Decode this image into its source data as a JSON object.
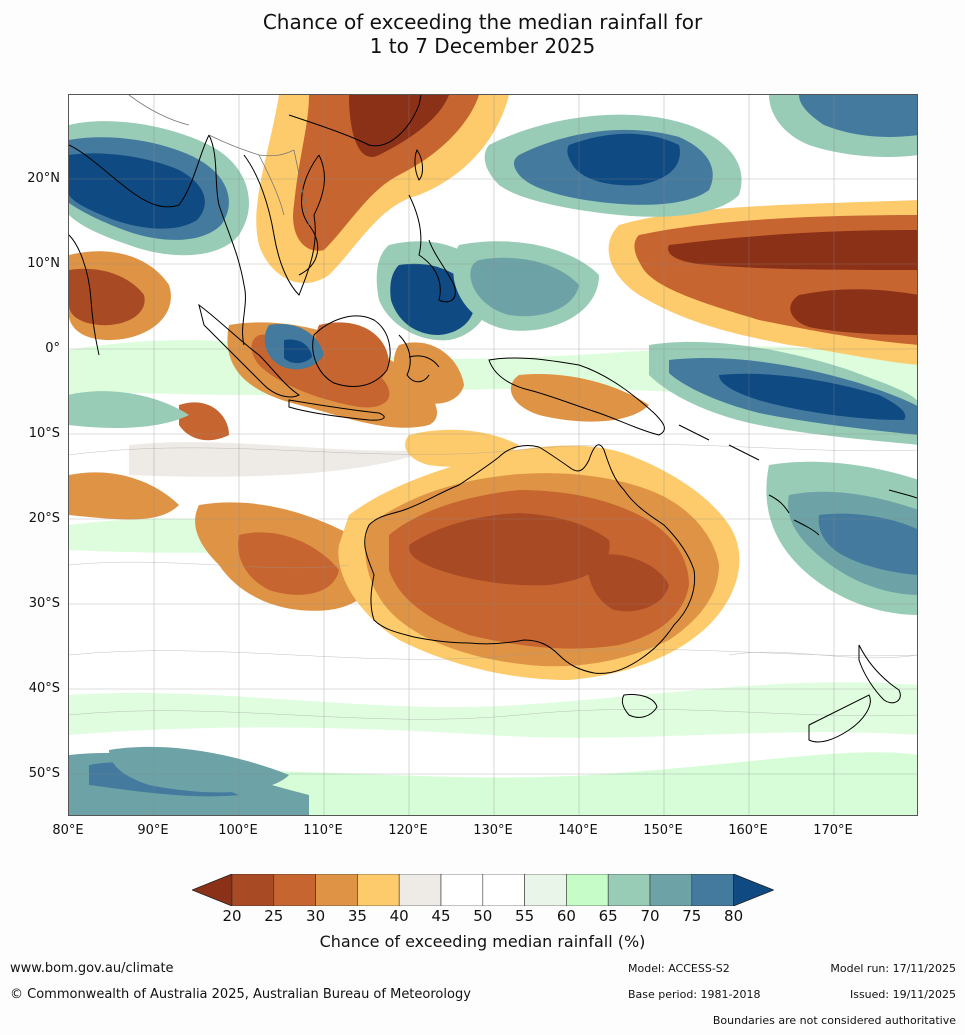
{
  "title": {
    "line1": "Chance of exceeding the median rainfall for",
    "line2": "1 to 7 December 2025"
  },
  "map": {
    "lat_labels": [
      "20°N",
      "10°N",
      "0°",
      "10°S",
      "20°S",
      "30°S",
      "40°S",
      "50°S"
    ],
    "lon_labels": [
      "80°E",
      "90°E",
      "100°E",
      "110°E",
      "120°E",
      "130°E",
      "140°E",
      "150°E",
      "160°E",
      "170°E"
    ],
    "extent": {
      "lon_min": 80,
      "lon_max": 180,
      "lat_min": -55,
      "lat_max": 30
    }
  },
  "colorbar": {
    "tick_labels": [
      "20",
      "25",
      "30",
      "35",
      "40",
      "45",
      "50",
      "55",
      "60",
      "65",
      "70",
      "75",
      "80"
    ],
    "colors": [
      "#8b3118",
      "#a84a24",
      "#c76530",
      "#df9445",
      "#fdcb6b",
      "#eeebe6",
      "#ffffff",
      "#ffffff",
      "#eaf5e9",
      "#c6fcc7",
      "#98ccb6",
      "#6da3a6",
      "#437a9e",
      "#0f4a82"
    ],
    "title": "Chance of exceeding median rainfall (%)"
  },
  "footer": {
    "website": "www.bom.gov.au/climate",
    "copyright": "© Commonwealth of Australia 2025, Australian Bureau of Meteorology",
    "model": "Model: ACCESS-S2",
    "base_period": "Base period: 1981-2018",
    "model_run": "Model run: 17/11/2025",
    "issued": "Issued: 19/11/2025",
    "disclaimer": "Boundaries are not considered authoritative"
  }
}
